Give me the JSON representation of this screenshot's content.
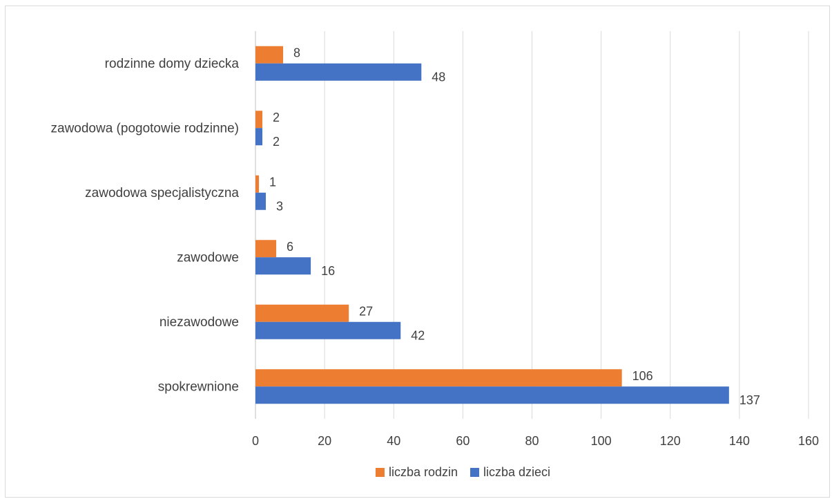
{
  "chart_data": {
    "type": "bar",
    "orientation": "horizontal",
    "categories": [
      "rodzinne domy dziecka",
      "zawodowa (pogotowie rodzinne)",
      "zawodowa specjalistyczna",
      "zawodowe",
      "niezawodowe",
      "spokrewnione"
    ],
    "series": [
      {
        "name": "liczba rodzin",
        "color": "#ED7D31",
        "values": [
          8,
          2,
          1,
          6,
          27,
          106
        ]
      },
      {
        "name": "liczba dzieci",
        "color": "#4472C4",
        "values": [
          48,
          2,
          3,
          16,
          42,
          137
        ]
      }
    ],
    "xlim": [
      0,
      160
    ],
    "xticks": [
      "0",
      "20",
      "40",
      "60",
      "80",
      "100",
      "120",
      "140",
      "160"
    ],
    "grid": "vertical",
    "legend": "bottom",
    "data_labels": true
  }
}
